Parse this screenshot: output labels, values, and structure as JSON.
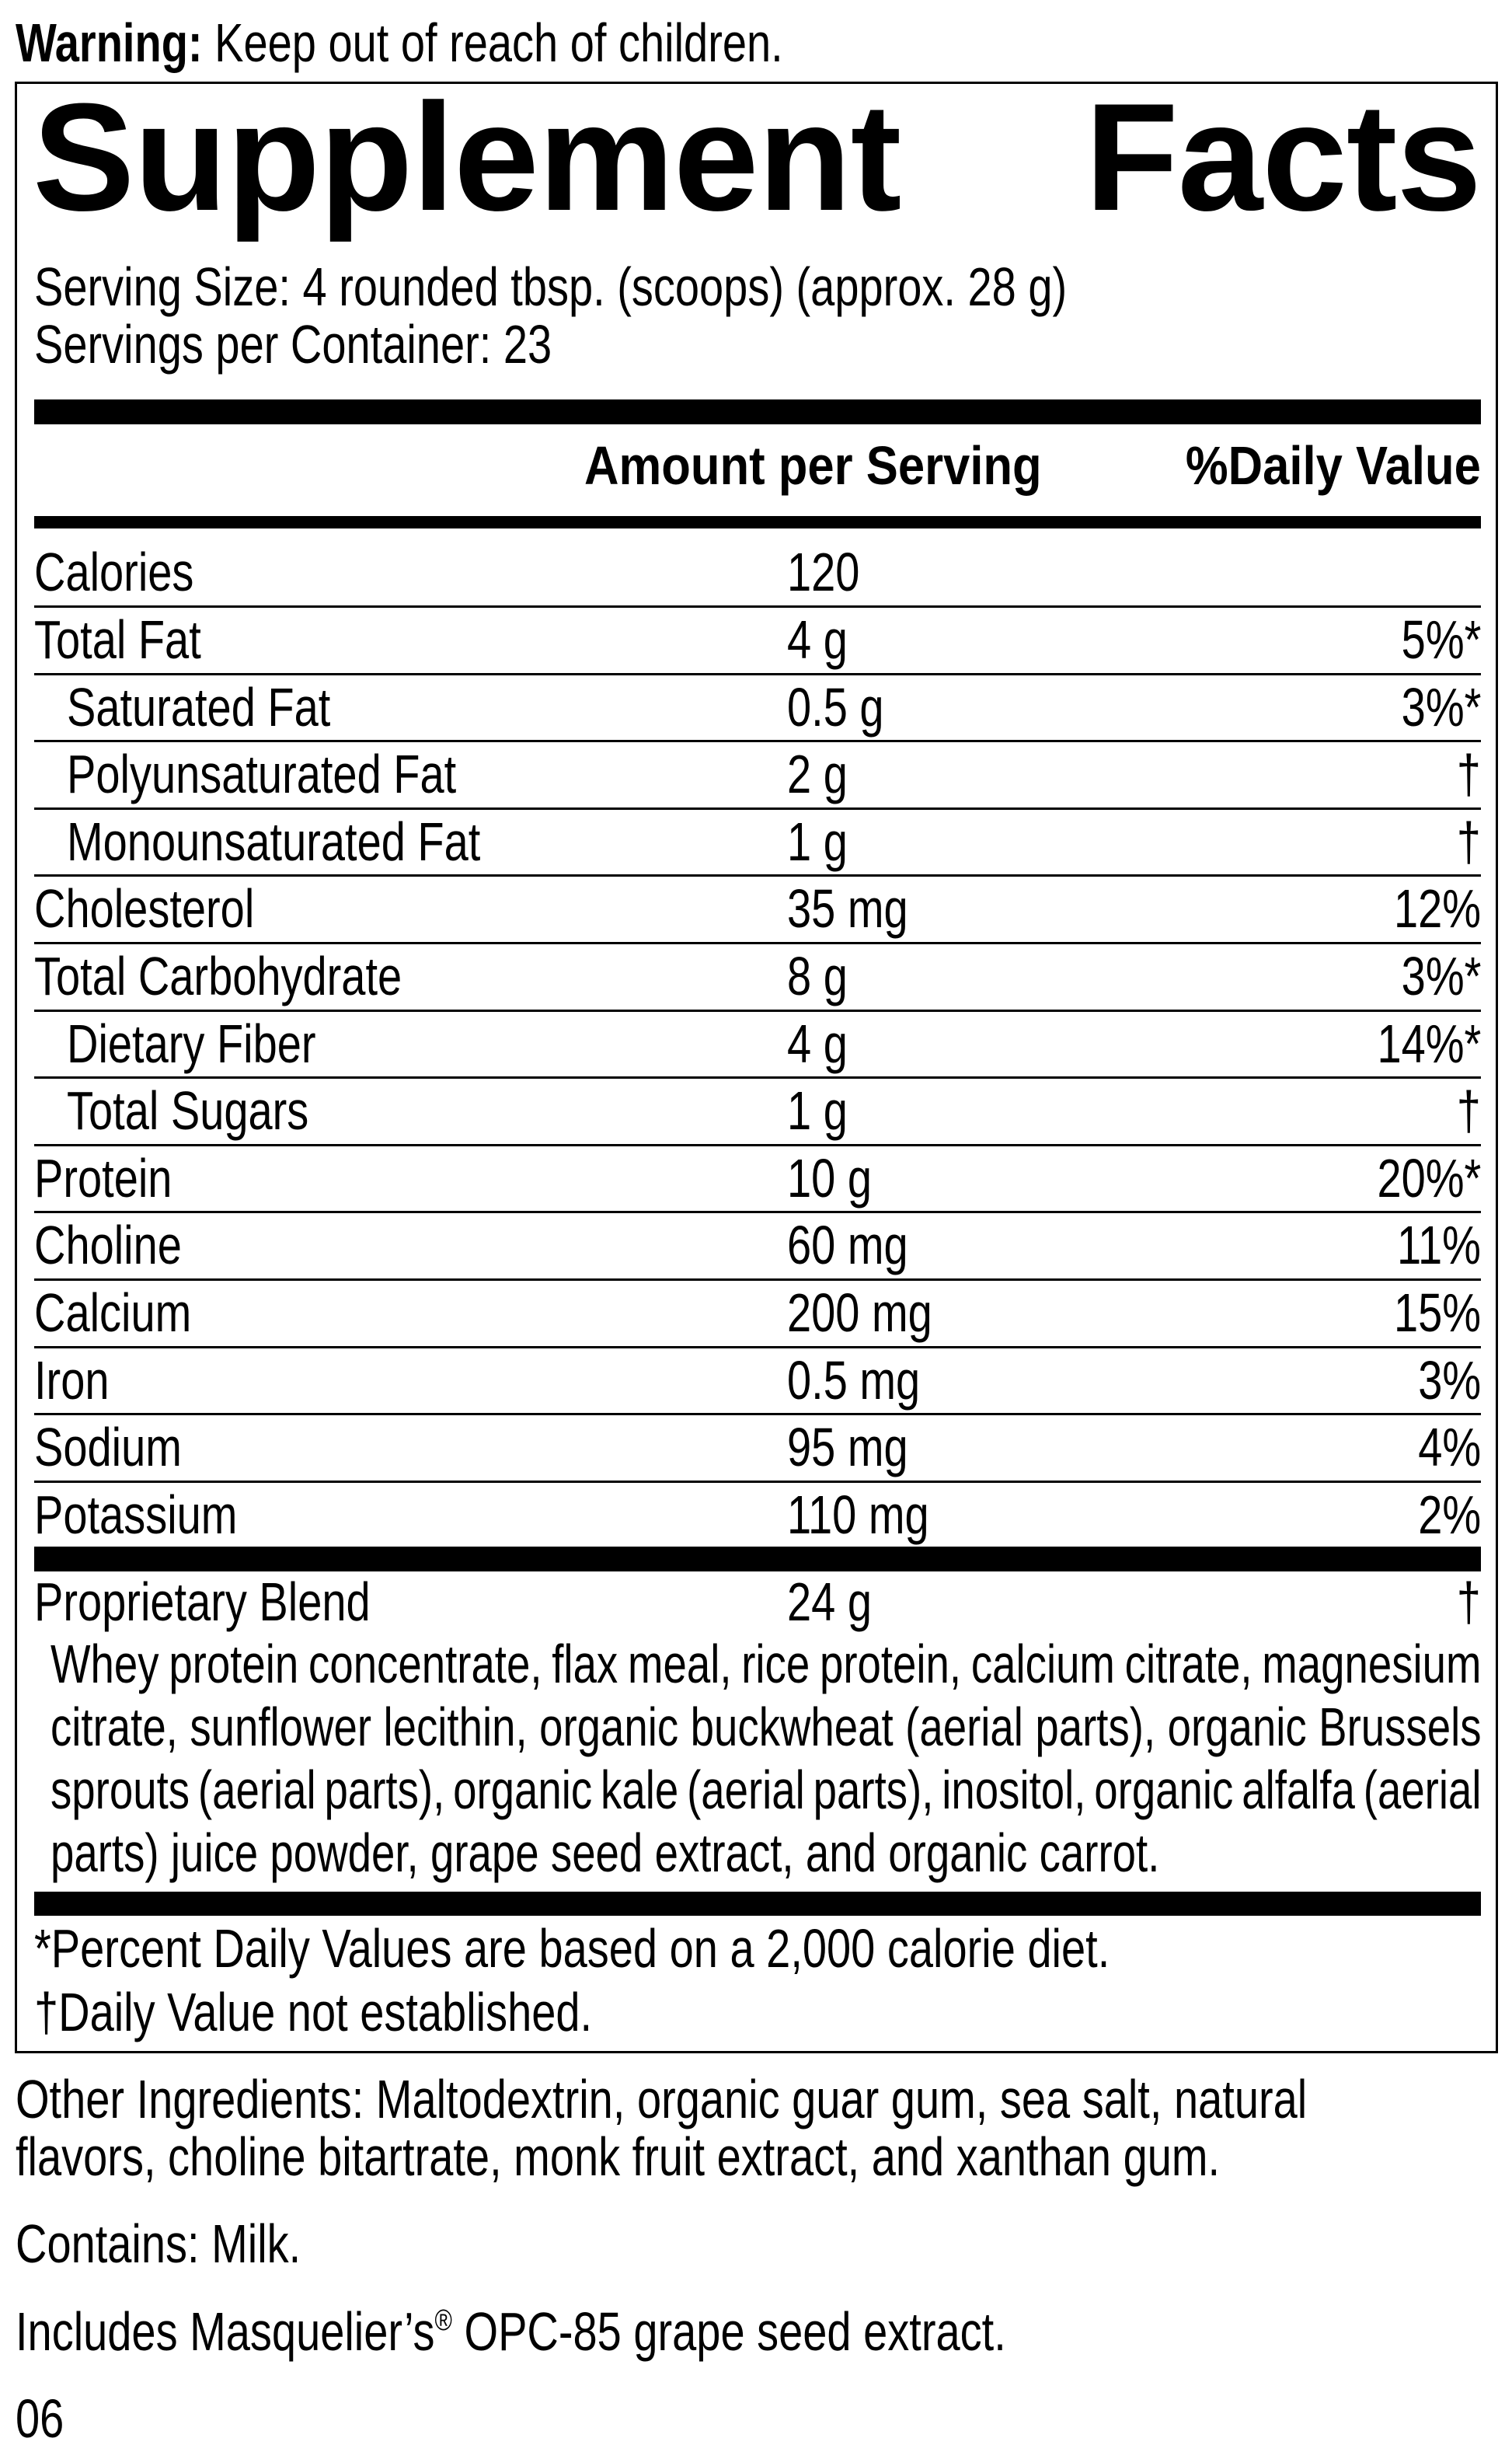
{
  "warning": {
    "label": "Warning:",
    "text": " Keep out of reach of children."
  },
  "title": {
    "word1": "Supplement",
    "word2": "Facts"
  },
  "serving_size": "Serving Size: 4 rounded tbsp. (scoops) (approx. 28 g)",
  "servings_per_container": "Servings per Container: 23",
  "header": {
    "amount": "Amount per Serving",
    "daily_value": "%Daily Value"
  },
  "rows": [
    {
      "label": "Calories",
      "amount": "120",
      "dv": "",
      "indent": false
    },
    {
      "label": "Total Fat",
      "amount": "4 g",
      "dv": "5%*",
      "indent": false
    },
    {
      "label": "Saturated Fat",
      "amount": "0.5 g",
      "dv": "3%*",
      "indent": true
    },
    {
      "label": "Polyunsaturated Fat",
      "amount": "2 g",
      "dv": "†",
      "indent": true
    },
    {
      "label": "Monounsaturated Fat",
      "amount": "1 g",
      "dv": "†",
      "indent": true
    },
    {
      "label": "Cholesterol",
      "amount": "35 mg",
      "dv": "12%",
      "indent": false
    },
    {
      "label": "Total Carbohydrate",
      "amount": "8 g",
      "dv": "3%*",
      "indent": false
    },
    {
      "label": "Dietary Fiber",
      "amount": "4 g",
      "dv": "14%*",
      "indent": true
    },
    {
      "label": "Total Sugars",
      "amount": "1 g",
      "dv": "†",
      "indent": true
    },
    {
      "label": "Protein",
      "amount": "10 g",
      "dv": "20%*",
      "indent": false
    },
    {
      "label": "Choline",
      "amount": "60 mg",
      "dv": "11%",
      "indent": false
    },
    {
      "label": "Calcium",
      "amount": "200 mg",
      "dv": "15%",
      "indent": false
    },
    {
      "label": "Iron",
      "amount": "0.5 mg",
      "dv": "3%",
      "indent": false
    },
    {
      "label": "Sodium",
      "amount": "95 mg",
      "dv": "4%",
      "indent": false
    },
    {
      "label": "Potassium",
      "amount": "110 mg",
      "dv": "2%",
      "indent": false
    }
  ],
  "blend": {
    "label": "Proprietary Blend",
    "amount": "24 g",
    "dv": "†",
    "ingredients_lines": [
      "Whey protein concentrate, flax meal, rice protein, calcium citrate, magnesium",
      "citrate, sunflower lecithin, organic buckwheat (aerial parts), organic Brussels",
      "sprouts (aerial parts), organic kale (aerial parts), inositol, organic alfalfa (aerial",
      "parts) juice powder, grape seed extract, and organic carrot."
    ]
  },
  "footnotes": {
    "percent_dv": "*Percent Daily Values are based on a 2,000 calorie diet.",
    "not_established": "†Daily Value not established."
  },
  "other_ingredients_lines": [
    "Other Ingredients: Maltodextrin, organic guar gum, sea salt, natural",
    "flavors, choline bitartrate, monk fruit extract, and xanthan gum."
  ],
  "contains": "Contains: Milk.",
  "includes": {
    "before": "Includes Masquelier’s",
    "registered": "®",
    "after": " OPC-85 grape seed extract."
  },
  "code": "06"
}
